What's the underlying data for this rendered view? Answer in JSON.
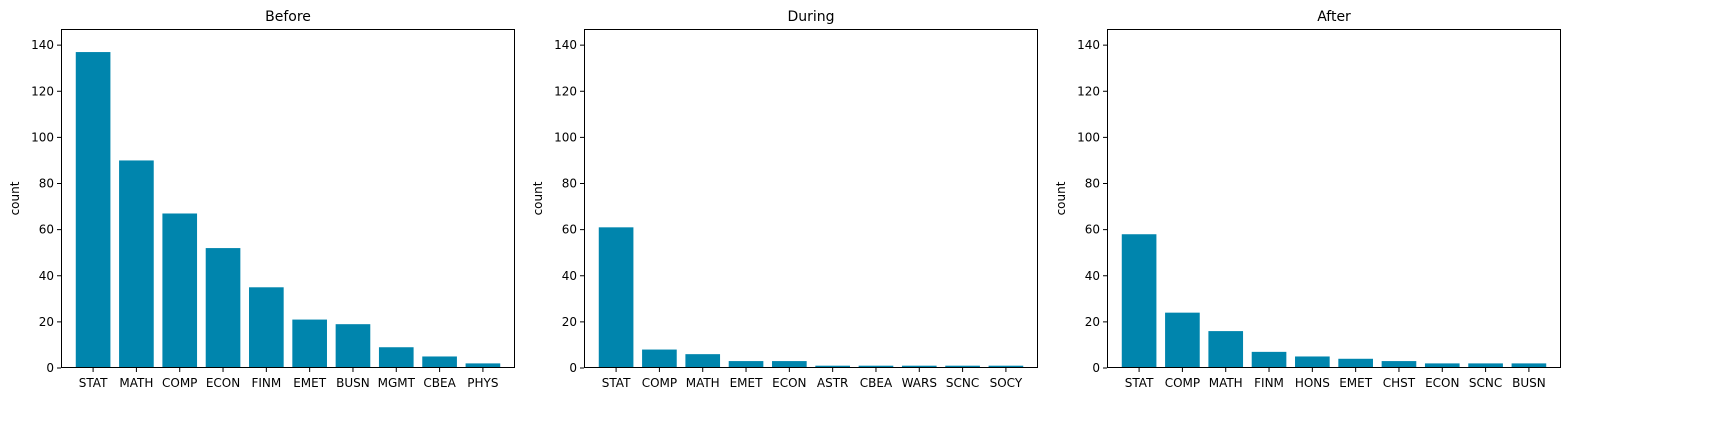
{
  "chart_data": [
    {
      "type": "bar",
      "title": "Before",
      "ylabel": "count",
      "xlabel": "",
      "ylim": [
        0,
        147
      ],
      "yticks": [
        0,
        20,
        40,
        60,
        80,
        100,
        120,
        140
      ],
      "categories": [
        "STAT",
        "MATH",
        "COMP",
        "ECON",
        "FINM",
        "EMET",
        "BUSN",
        "MGMT",
        "CBEA",
        "PHYS"
      ],
      "values": [
        137,
        90,
        67,
        52,
        35,
        21,
        19,
        9,
        5,
        2
      ],
      "color": "#0085AD"
    },
    {
      "type": "bar",
      "title": "During",
      "ylabel": "count",
      "xlabel": "",
      "ylim": [
        0,
        147
      ],
      "yticks": [
        0,
        20,
        40,
        60,
        80,
        100,
        120,
        140
      ],
      "categories": [
        "STAT",
        "COMP",
        "MATH",
        "EMET",
        "ECON",
        "ASTR",
        "CBEA",
        "WARS",
        "SCNC",
        "SOCY"
      ],
      "values": [
        61,
        8,
        6,
        3,
        3,
        1,
        1,
        1,
        1,
        1
      ],
      "color": "#0085AD"
    },
    {
      "type": "bar",
      "title": "After",
      "ylabel": "count",
      "xlabel": "",
      "ylim": [
        0,
        147
      ],
      "yticks": [
        0,
        20,
        40,
        60,
        80,
        100,
        120,
        140
      ],
      "categories": [
        "STAT",
        "COMP",
        "MATH",
        "FINM",
        "HONS",
        "EMET",
        "CHST",
        "ECON",
        "SCNC",
        "BUSN"
      ],
      "values": [
        58,
        24,
        16,
        7,
        5,
        4,
        3,
        2,
        2,
        2
      ],
      "color": "#0085AD"
    }
  ]
}
